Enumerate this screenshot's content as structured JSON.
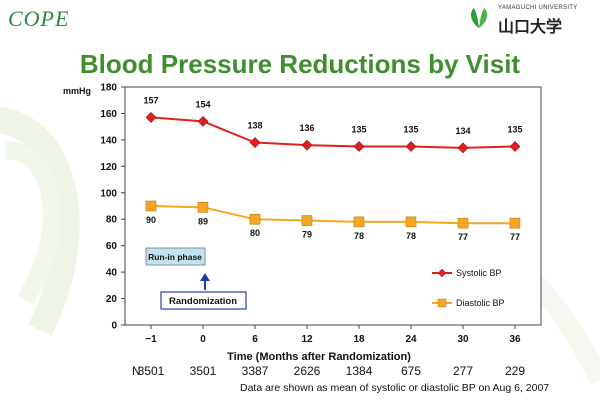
{
  "header": {
    "left_logo_text": "COPE",
    "right_logo_small": "YAMAGUCHI UNIVERSITY",
    "right_logo_name": "山口大学"
  },
  "title": "Blood Pressure Reductions by Visit",
  "chart_data": {
    "type": "line",
    "categories": [
      "−1",
      "0",
      "6",
      "12",
      "18",
      "24",
      "30",
      "36"
    ],
    "series": [
      {
        "name": "Systolic BP",
        "values": [
          157,
          154,
          138,
          136,
          135,
          135,
          134,
          135
        ],
        "color": "#e02020",
        "marker": "diamond"
      },
      {
        "name": "Diastolic BP",
        "values": [
          90,
          89,
          80,
          79,
          78,
          78,
          77,
          77
        ],
        "color": "#f5a623",
        "marker": "square"
      }
    ],
    "ylabel": "mmHg",
    "xlabel": "Time (Months after Randomization)",
    "ylim": [
      0,
      180
    ],
    "yticks": [
      0,
      20,
      40,
      60,
      80,
      100,
      120,
      140,
      160,
      180
    ],
    "grid": false,
    "legend": "bottom-right",
    "annotations": {
      "runin": "Run-in phase",
      "randomization": "Randomization"
    }
  },
  "n_row": {
    "label": "N",
    "values": [
      "3501",
      "3501",
      "3387",
      "2626",
      "1384",
      "675",
      "277",
      "229"
    ]
  },
  "footnote": "Data are shown as mean of systolic or diastolic BP on Aug 6, 2007"
}
